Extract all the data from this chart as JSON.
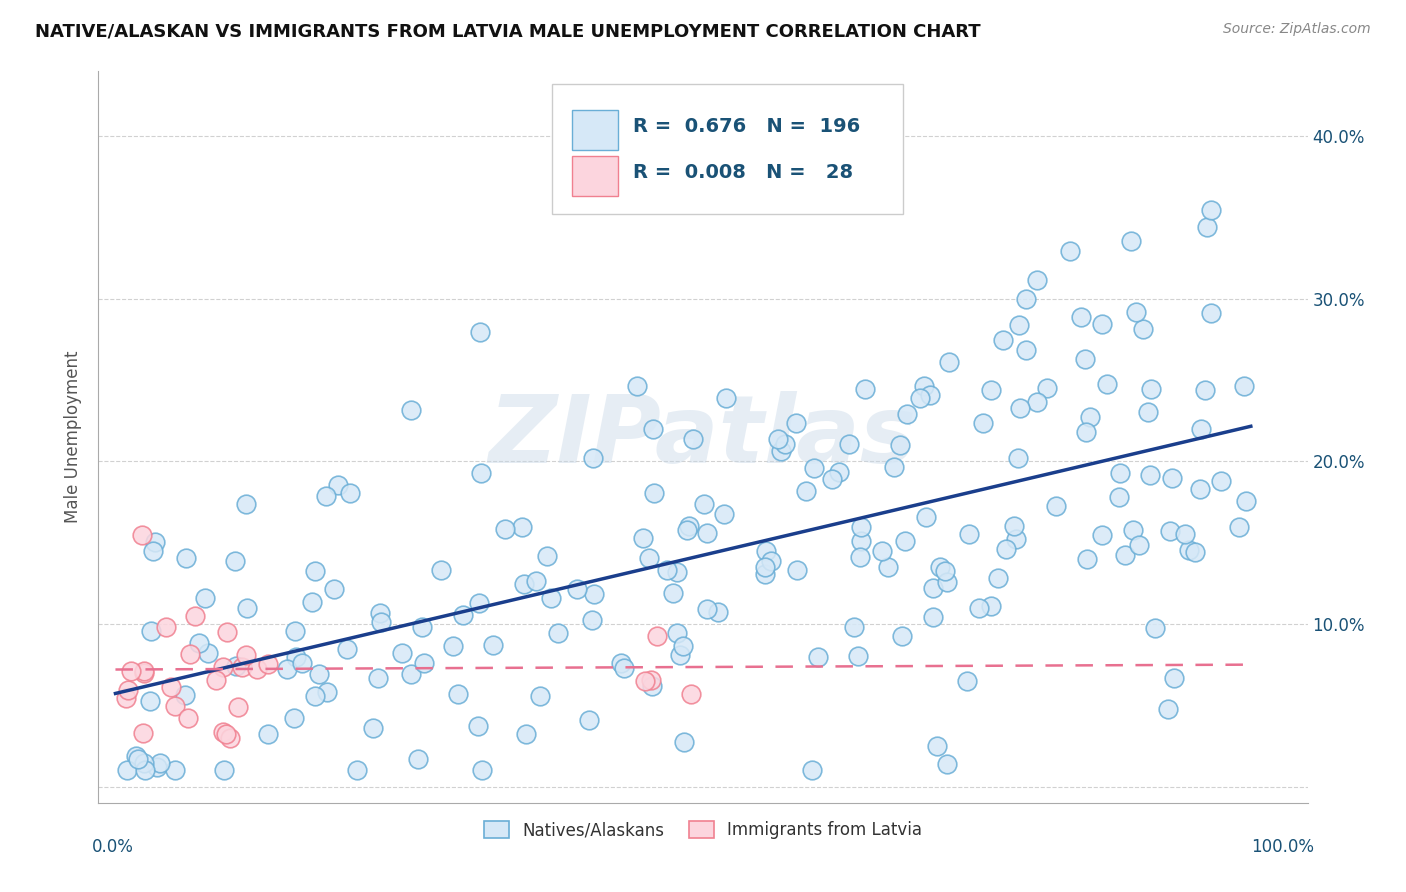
{
  "title": "NATIVE/ALASKAN VS IMMIGRANTS FROM LATVIA MALE UNEMPLOYMENT CORRELATION CHART",
  "source": "Source: ZipAtlas.com",
  "ylabel": "Male Unemployment",
  "y_ticks": [
    0.0,
    0.1,
    0.2,
    0.3,
    0.4
  ],
  "y_tick_labels": [
    "",
    "10.0%",
    "20.0%",
    "30.0%",
    "40.0%"
  ],
  "series1_face": "#d6e8f7",
  "series1_edge": "#6aaed6",
  "series2_face": "#fcd5de",
  "series2_edge": "#f08090",
  "trendline1_color": "#1a3e8c",
  "trendline2_color": "#e87090",
  "background_color": "#ffffff",
  "grid_color": "#cccccc",
  "R1": 0.676,
  "N1": 196,
  "R2": 0.008,
  "N2": 28,
  "legend_box_color": "#ffffff",
  "legend_border_color": "#cccccc",
  "legend_text_color": "#1a5276"
}
